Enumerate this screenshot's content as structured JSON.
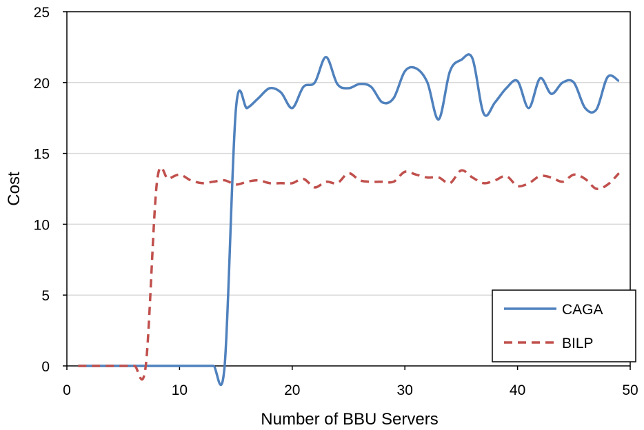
{
  "chart_data": {
    "type": "line",
    "title": "",
    "xlabel": "Number of BBU Servers",
    "ylabel": "Cost",
    "xlim": [
      0,
      50
    ],
    "ylim": [
      0,
      25
    ],
    "xticks": [
      0,
      10,
      20,
      30,
      40,
      50
    ],
    "yticks": [
      0,
      5,
      10,
      15,
      20,
      25
    ],
    "grid": "horizontal",
    "legend_position": "bottom-right",
    "series": [
      {
        "name": "CAGA",
        "color": "#4f81bd",
        "style": "solid",
        "x": [
          1,
          2,
          3,
          4,
          5,
          6,
          7,
          8,
          9,
          10,
          11,
          12,
          13,
          14,
          15,
          16,
          17,
          18,
          19,
          20,
          21,
          22,
          23,
          24,
          25,
          26,
          27,
          28,
          29,
          30,
          31,
          32,
          33,
          34,
          35,
          36,
          37,
          38,
          39,
          40,
          41,
          42,
          43,
          44,
          45,
          46,
          47,
          48,
          49
        ],
        "values": [
          0,
          0,
          0,
          0,
          0,
          0,
          0,
          0,
          0,
          0,
          0,
          0,
          0,
          0,
          18.1,
          18.2,
          18.9,
          19.6,
          19.3,
          18.2,
          19.7,
          20,
          21.8,
          19.9,
          19.6,
          19.9,
          19.7,
          18.6,
          18.9,
          20.8,
          21,
          20,
          17.4,
          20.8,
          21.6,
          21.7,
          17.8,
          18.6,
          19.6,
          20.1,
          18.2,
          20.3,
          19.2,
          20,
          20,
          18.2,
          18.1,
          20.4,
          20.1
        ]
      },
      {
        "name": "BILP",
        "color": "#c0504d",
        "style": "dashed",
        "x": [
          1,
          2,
          3,
          4,
          5,
          6,
          7,
          8,
          9,
          10,
          11,
          12,
          13,
          14,
          15,
          16,
          17,
          18,
          19,
          20,
          21,
          22,
          23,
          24,
          25,
          26,
          27,
          28,
          29,
          30,
          31,
          32,
          33,
          34,
          35,
          36,
          37,
          38,
          39,
          40,
          41,
          42,
          43,
          44,
          45,
          46,
          47,
          48,
          49
        ],
        "values": [
          0,
          0,
          0,
          0,
          0,
          0,
          0,
          13,
          13.2,
          13.5,
          13.1,
          12.9,
          13,
          13.1,
          12.8,
          13,
          13.1,
          12.9,
          12.9,
          12.9,
          13.2,
          12.6,
          13,
          12.9,
          13.6,
          13.1,
          13,
          13,
          13,
          13.7,
          13.5,
          13.3,
          13.3,
          12.9,
          13.8,
          13.3,
          12.9,
          13.1,
          13.4,
          12.7,
          12.9,
          13.4,
          13.3,
          13,
          13.5,
          13.2,
          12.5,
          12.8,
          13.6
        ]
      }
    ]
  }
}
